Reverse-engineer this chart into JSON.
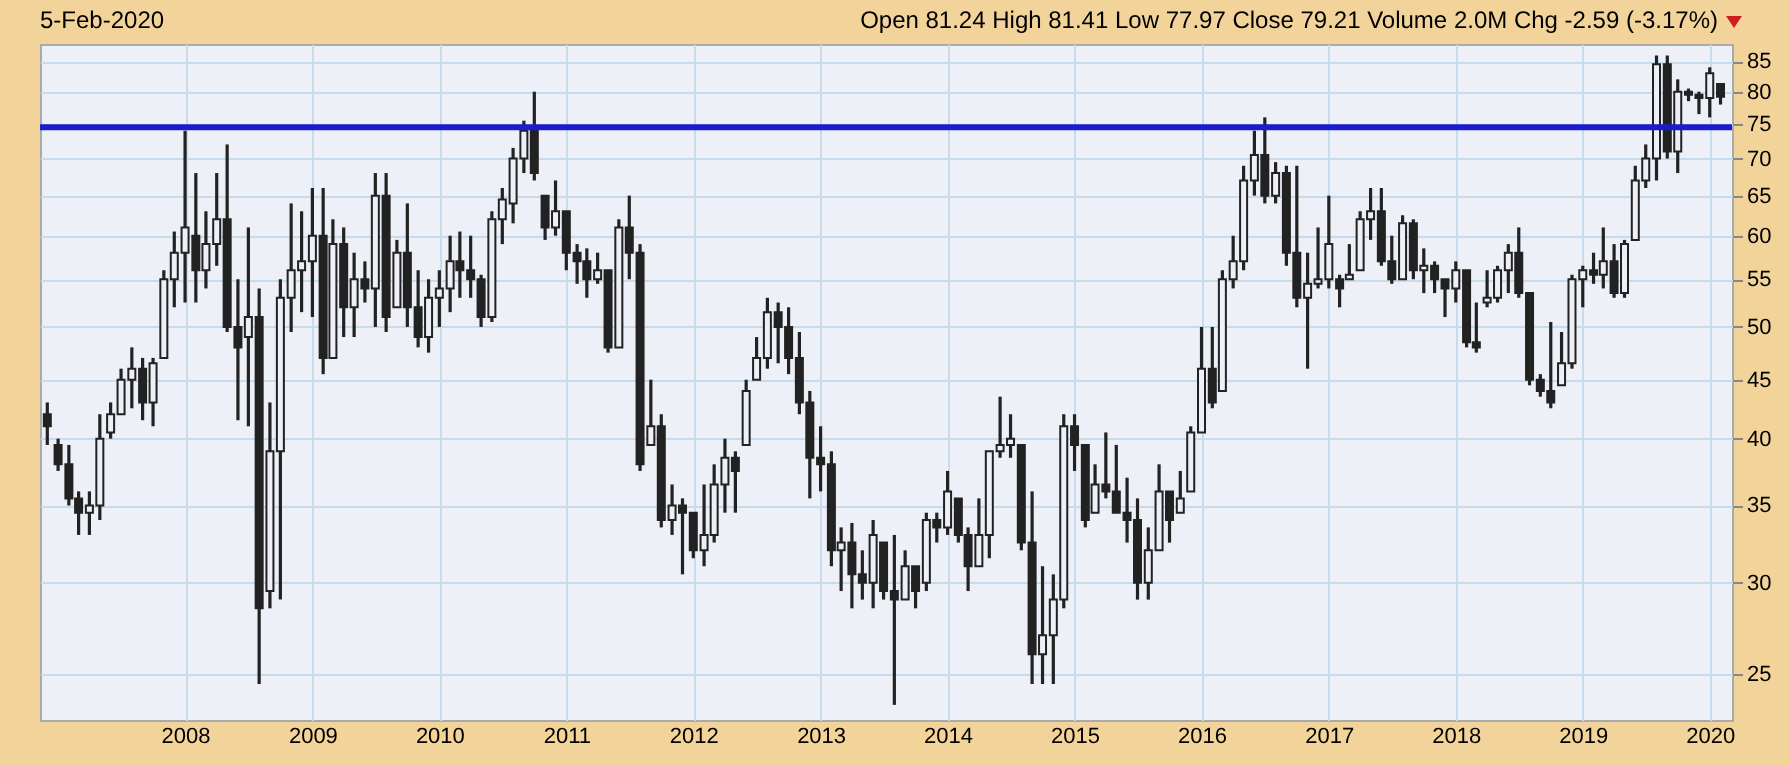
{
  "chart_data": {
    "type": "candlestick",
    "title": "5-Feb-2020",
    "annotations": [
      "Open 81.24 High 81.41 Low 77.97 Close 79.21 Volume 2.0M Chg -2.59 (-3.17%)"
    ],
    "color": "#222222",
    "log": true,
    "grid": true,
    "ylim": [
      22.8,
      88
    ],
    "yticks": [
      25,
      30,
      35,
      40,
      45,
      50,
      55,
      60,
      65,
      70,
      75,
      80,
      85
    ],
    "xlim": [
      "2006-11-10",
      "2020-03-05"
    ],
    "xticks": [
      "2008",
      "2009",
      "2010",
      "2011",
      "2012",
      "2013",
      "2014",
      "2015",
      "2016",
      "2017",
      "2018",
      "2019",
      "2020"
    ],
    "ref_lines": [
      {
        "axis": "y",
        "value": 74.5,
        "color": "#1c1ccc"
      }
    ],
    "x": [
      "2006-12",
      "2007-01",
      "2007-02",
      "2007-03",
      "2007-04",
      "2007-05",
      "2007-06",
      "2007-07",
      "2007-08",
      "2007-09",
      "2007-10",
      "2007-11",
      "2007-12",
      "2008-01",
      "2008-02",
      "2008-03",
      "2008-04",
      "2008-05",
      "2008-06",
      "2008-07",
      "2008-08",
      "2008-09",
      "2008-10",
      "2008-11",
      "2008-12",
      "2009-01",
      "2009-02",
      "2009-03",
      "2009-04",
      "2009-05",
      "2009-06",
      "2009-07",
      "2009-08",
      "2009-09",
      "2009-10",
      "2009-11",
      "2009-12",
      "2010-01",
      "2010-02",
      "2010-03",
      "2010-04",
      "2010-05",
      "2010-06",
      "2010-07",
      "2010-08",
      "2010-09",
      "2010-10",
      "2010-11",
      "2010-12",
      "2011-01",
      "2011-02",
      "2011-03",
      "2011-04",
      "2011-05",
      "2011-06",
      "2011-07",
      "2011-08",
      "2011-09",
      "2011-10",
      "2011-11",
      "2011-12",
      "2012-01",
      "2012-02",
      "2012-03",
      "2012-04",
      "2012-05",
      "2012-06",
      "2012-07",
      "2012-08",
      "2012-09",
      "2012-10",
      "2012-11",
      "2012-12",
      "2013-01",
      "2013-02",
      "2013-03",
      "2013-04",
      "2013-05",
      "2013-06",
      "2013-07",
      "2013-08",
      "2013-09",
      "2013-10",
      "2013-11",
      "2013-12",
      "2014-01",
      "2014-02",
      "2014-03",
      "2014-04",
      "2014-05",
      "2014-06",
      "2014-07",
      "2014-08",
      "2014-09",
      "2014-10",
      "2014-11",
      "2014-12",
      "2015-01",
      "2015-02",
      "2015-03",
      "2015-04",
      "2015-05",
      "2015-06",
      "2015-07",
      "2015-08",
      "2015-09",
      "2015-10",
      "2015-11",
      "2015-12",
      "2016-01",
      "2016-02",
      "2016-03",
      "2016-04",
      "2016-05",
      "2016-06",
      "2016-07",
      "2016-08",
      "2016-09",
      "2016-10",
      "2016-11",
      "2016-12",
      "2017-01",
      "2017-02",
      "2017-03",
      "2017-04",
      "2017-05",
      "2017-06",
      "2017-07",
      "2017-08",
      "2017-09",
      "2017-10",
      "2017-11",
      "2017-12",
      "2018-01",
      "2018-02",
      "2018-03",
      "2018-04",
      "2018-05",
      "2018-06",
      "2018-07",
      "2018-08",
      "2018-09",
      "2018-10",
      "2018-11",
      "2018-12",
      "2019-01",
      "2019-02",
      "2019-03",
      "2019-04",
      "2019-05",
      "2019-06",
      "2019-07",
      "2019-08",
      "2019-09",
      "2019-10",
      "2019-11",
      "2019-12",
      "2020-01",
      "2020-02"
    ],
    "ohlc": [
      [
        42,
        43,
        39.5,
        41
      ],
      [
        39.5,
        40,
        37.5,
        38
      ],
      [
        38,
        39.5,
        35,
        35.5
      ],
      [
        35.5,
        36,
        33,
        34.5
      ],
      [
        34.5,
        36,
        33,
        35
      ],
      [
        35,
        42,
        34,
        40
      ],
      [
        40.5,
        43,
        40,
        42
      ],
      [
        42,
        46,
        42,
        45
      ],
      [
        45,
        48,
        42.5,
        46
      ],
      [
        46,
        47,
        41.5,
        43
      ],
      [
        43,
        47,
        41,
        46.5
      ],
      [
        47,
        56,
        47,
        55
      ],
      [
        55,
        60.5,
        52,
        58
      ],
      [
        58,
        74,
        52.5,
        61
      ],
      [
        60,
        68,
        52.5,
        56
      ],
      [
        56,
        63,
        54,
        59
      ],
      [
        59,
        68,
        56.5,
        62
      ],
      [
        62,
        72,
        49.5,
        50
      ],
      [
        50,
        55,
        41.5,
        48
      ],
      [
        49,
        61,
        41,
        51
      ],
      [
        51,
        54,
        24.5,
        28.5
      ],
      [
        29.5,
        43,
        28.5,
        39
      ],
      [
        39,
        55,
        29,
        53
      ],
      [
        53,
        64,
        49.5,
        56
      ],
      [
        56,
        63,
        51.5,
        57
      ],
      [
        57,
        66,
        51,
        60
      ],
      [
        60,
        66,
        45.5,
        47
      ],
      [
        47,
        62,
        47,
        59
      ],
      [
        59,
        61,
        49,
        52
      ],
      [
        52,
        58,
        49,
        55
      ],
      [
        55,
        57,
        52.5,
        54
      ],
      [
        54,
        68,
        50,
        65
      ],
      [
        65,
        68,
        49.5,
        51
      ],
      [
        52,
        59.5,
        52,
        58
      ],
      [
        58,
        64,
        50,
        52
      ],
      [
        52,
        56,
        48,
        49
      ],
      [
        49,
        55,
        47.5,
        53
      ],
      [
        53,
        56,
        50,
        54
      ],
      [
        54,
        60,
        51.5,
        57
      ],
      [
        57,
        60.5,
        53,
        56
      ],
      [
        56,
        60,
        53,
        55
      ],
      [
        55,
        55.5,
        50,
        51
      ],
      [
        51,
        63,
        50.5,
        62
      ],
      [
        62,
        66,
        59,
        64.5
      ],
      [
        64,
        71.5,
        61.5,
        70
      ],
      [
        70,
        75.5,
        68,
        74
      ],
      [
        74,
        80,
        67,
        68
      ],
      [
        65,
        65,
        59.5,
        61
      ],
      [
        61,
        67,
        60,
        63
      ],
      [
        63,
        63,
        56,
        58
      ],
      [
        58,
        59,
        54.5,
        57
      ],
      [
        57,
        58.5,
        53,
        55
      ],
      [
        55,
        58,
        54.5,
        56
      ],
      [
        56,
        56,
        47.5,
        48
      ],
      [
        48,
        62,
        48,
        61
      ],
      [
        61,
        65,
        55,
        58
      ],
      [
        58,
        59,
        37.5,
        38
      ],
      [
        39.5,
        45,
        39.5,
        41
      ],
      [
        41,
        42,
        33.5,
        34
      ],
      [
        34,
        36.5,
        33,
        35
      ],
      [
        35,
        35.5,
        30.5,
        34.5
      ],
      [
        34.5,
        34.5,
        31.5,
        32
      ],
      [
        32,
        36.5,
        31,
        33
      ],
      [
        33,
        38,
        32.5,
        36.5
      ],
      [
        36.5,
        40,
        34.5,
        38.5
      ],
      [
        38.5,
        39,
        34.5,
        37.5
      ],
      [
        39.5,
        45,
        39.5,
        44
      ],
      [
        45,
        49,
        45,
        47
      ],
      [
        47,
        53,
        46,
        51.5
      ],
      [
        51.5,
        52.5,
        46.5,
        50
      ],
      [
        50,
        52,
        45.5,
        47
      ],
      [
        47,
        49.5,
        42,
        43
      ],
      [
        43,
        44,
        35.5,
        38.5
      ],
      [
        38.5,
        41,
        36,
        38
      ],
      [
        38,
        39,
        31,
        32
      ],
      [
        32,
        33.5,
        29.5,
        32.5
      ],
      [
        32.5,
        33.8,
        28.5,
        30.5
      ],
      [
        30.5,
        32,
        29,
        30
      ],
      [
        30,
        34,
        28.5,
        33
      ],
      [
        32.5,
        32.5,
        29,
        29.5
      ],
      [
        29.5,
        33,
        23.5,
        29
      ],
      [
        29,
        32,
        29,
        31
      ],
      [
        31,
        31,
        28.5,
        29.5
      ],
      [
        30,
        34.5,
        29.5,
        34
      ],
      [
        34,
        34.5,
        32.5,
        33.5
      ],
      [
        33.5,
        37.5,
        33,
        36
      ],
      [
        35.5,
        35.5,
        32.5,
        33
      ],
      [
        33,
        33.5,
        29.5,
        31
      ],
      [
        31,
        35.5,
        31,
        33
      ],
      [
        33,
        39,
        31.5,
        39
      ],
      [
        39,
        43.5,
        38.5,
        39.5
      ],
      [
        39.5,
        42,
        38.5,
        40
      ],
      [
        39.5,
        39.5,
        32,
        32.5
      ],
      [
        32.5,
        36,
        24.5,
        26
      ],
      [
        26,
        31,
        24.5,
        27
      ],
      [
        27,
        30.5,
        24.5,
        29
      ],
      [
        29,
        42,
        28.5,
        41
      ],
      [
        41,
        42,
        37.5,
        39.5
      ],
      [
        39.5,
        39.5,
        33.5,
        34
      ],
      [
        34.5,
        38,
        34.5,
        36.5
      ],
      [
        36.5,
        40.5,
        35.5,
        36
      ],
      [
        36,
        39.5,
        34.5,
        34.5
      ],
      [
        34.5,
        37,
        32.5,
        34
      ],
      [
        34,
        35.5,
        29,
        30
      ],
      [
        30,
        33.5,
        29,
        32
      ],
      [
        32,
        38,
        32,
        36
      ],
      [
        36,
        36,
        32.5,
        34
      ],
      [
        34.5,
        37.5,
        34.5,
        35.5
      ],
      [
        36,
        41,
        36,
        40.5
      ],
      [
        40.5,
        50,
        40.5,
        46
      ],
      [
        46,
        50,
        42.5,
        43
      ],
      [
        44,
        56,
        44,
        55
      ],
      [
        55,
        60,
        54,
        57
      ],
      [
        57,
        69,
        56,
        67
      ],
      [
        67,
        74,
        65,
        70.5
      ],
      [
        70.5,
        76,
        64,
        65
      ],
      [
        65,
        69.5,
        64,
        68
      ],
      [
        68,
        69,
        56.5,
        58
      ],
      [
        58,
        69,
        52,
        53
      ],
      [
        53,
        58,
        46,
        54.5
      ],
      [
        54.5,
        61,
        54,
        55
      ],
      [
        55,
        65,
        54,
        59
      ],
      [
        55,
        55.5,
        52,
        54
      ],
      [
        55,
        59,
        55,
        55.5
      ],
      [
        56,
        63,
        56,
        62
      ],
      [
        62,
        66,
        59.5,
        63
      ],
      [
        63,
        66,
        56.5,
        57
      ],
      [
        57,
        60,
        54.5,
        55
      ],
      [
        55,
        62.5,
        55,
        61.5
      ],
      [
        61.5,
        62,
        55,
        56
      ],
      [
        56,
        58.5,
        53.5,
        56.5
      ],
      [
        56.5,
        57,
        53.5,
        55
      ],
      [
        55,
        55,
        51,
        54
      ],
      [
        54,
        57,
        52.5,
        56
      ],
      [
        56,
        56,
        48,
        48.5
      ],
      [
        48.5,
        52.5,
        47.5,
        48
      ],
      [
        52.5,
        56,
        52,
        53
      ],
      [
        53,
        56.5,
        52.5,
        56
      ],
      [
        56,
        59,
        53.5,
        58
      ],
      [
        58,
        61,
        53,
        53.5
      ],
      [
        53.5,
        53.5,
        44.5,
        45
      ],
      [
        45,
        45.5,
        43.5,
        44
      ],
      [
        44,
        50.5,
        42.5,
        43
      ],
      [
        44.5,
        49.5,
        44.5,
        46.5
      ],
      [
        46.5,
        55.5,
        46,
        55
      ],
      [
        55,
        56.5,
        52,
        56
      ],
      [
        56,
        58,
        54.5,
        55.5
      ],
      [
        55.5,
        61,
        54,
        57
      ],
      [
        57,
        59,
        53,
        53.5
      ],
      [
        53.5,
        59.5,
        53,
        59
      ],
      [
        59.5,
        69,
        59.5,
        67
      ],
      [
        67,
        72,
        66,
        70
      ],
      [
        70,
        86,
        67,
        84.5
      ],
      [
        84.5,
        86,
        70,
        71
      ],
      [
        71,
        82,
        68,
        80
      ],
      [
        80,
        80.5,
        78.5,
        79.5
      ],
      [
        79.5,
        80,
        76.5,
        79
      ],
      [
        79,
        84,
        76,
        83
      ],
      [
        81.24,
        81.41,
        77.97,
        79.21
      ]
    ]
  }
}
